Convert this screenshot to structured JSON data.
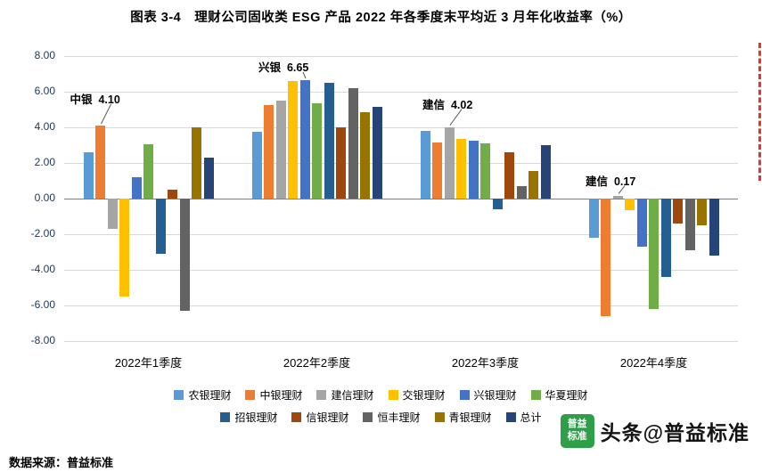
{
  "source": "数据来源：普益标准",
  "watermark": {
    "logo_line1": "普益",
    "logo_line2": "标准",
    "logo_color": "#2e9e48",
    "text": "头条@普益标准"
  },
  "chart_data": {
    "type": "bar",
    "title": "图表 3-4　理财公司固收类 ESG 产品 2022 年各季度末平均近 3 月年化收益率（%）",
    "xlabel": "",
    "ylabel": "",
    "grid": true,
    "legend_position": "bottom",
    "ylim": [
      -8,
      8
    ],
    "yticks": [
      8,
      6,
      4,
      2,
      0,
      -2,
      -4,
      -6,
      -8
    ],
    "ytick_labels": [
      "8.00",
      "6.00",
      "4.00",
      "2.00",
      "0.00",
      "-2.00",
      "-4.00",
      "-6.00",
      "-8.00"
    ],
    "categories": [
      "2022年1季度",
      "2022年2季度",
      "2022年3季度",
      "2022年4季度"
    ],
    "series": [
      {
        "name": "农银理财",
        "color": "#5b9bd5",
        "values": [
          2.6,
          3.75,
          3.8,
          -2.2
        ]
      },
      {
        "name": "中银理财",
        "color": "#ed7d31",
        "values": [
          4.1,
          5.25,
          3.15,
          -6.6
        ]
      },
      {
        "name": "建信理财",
        "color": "#a5a5a5",
        "values": [
          -1.7,
          5.5,
          4.02,
          0.17
        ]
      },
      {
        "name": "交银理财",
        "color": "#ffc000",
        "values": [
          -5.5,
          6.6,
          3.35,
          -0.65
        ]
      },
      {
        "name": "兴银理财",
        "color": "#4472c4",
        "values": [
          1.2,
          6.65,
          3.25,
          -2.7
        ]
      },
      {
        "name": "华夏理财",
        "color": "#70ad47",
        "values": [
          3.05,
          5.35,
          3.1,
          -6.2
        ]
      },
      {
        "name": "招银理财",
        "color": "#255e91",
        "values": [
          -3.1,
          6.5,
          -0.6,
          -4.4
        ]
      },
      {
        "name": "信银理财",
        "color": "#9e480e",
        "values": [
          0.5,
          4.0,
          2.6,
          -1.4
        ]
      },
      {
        "name": "恒丰理财",
        "color": "#636363",
        "values": [
          -6.3,
          6.2,
          0.7,
          -2.9
        ]
      },
      {
        "name": "青银理财",
        "color": "#997300",
        "values": [
          4.0,
          4.85,
          1.55,
          -1.5
        ]
      },
      {
        "name": "总计",
        "color": "#264478",
        "values": [
          2.3,
          5.15,
          3.0,
          -3.2
        ]
      }
    ],
    "legend_rows": [
      [
        0,
        1,
        2,
        3,
        4,
        5
      ],
      [
        6,
        7,
        8,
        9,
        10
      ]
    ],
    "annotations": [
      {
        "text": "中银  4.10",
        "series_index": 1,
        "category_index": 0
      },
      {
        "text": "兴银  6.65",
        "series_index": 4,
        "category_index": 1
      },
      {
        "text": "建信  4.02",
        "series_index": 2,
        "category_index": 2
      },
      {
        "text": "建信  0.17",
        "series_index": 2,
        "category_index": 3
      }
    ]
  }
}
